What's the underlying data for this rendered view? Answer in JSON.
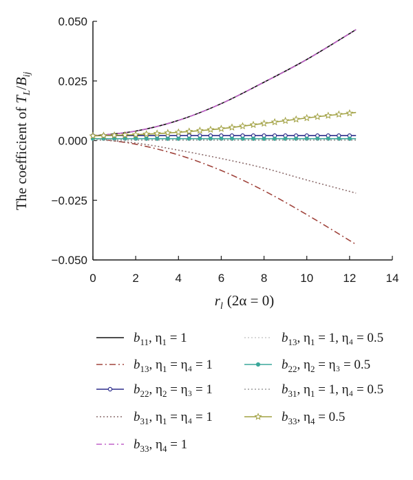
{
  "chart_data": {
    "type": "line",
    "title": "",
    "xlabel": {
      "main": "r",
      "sub": "l",
      "paren": "(2α = 0)"
    },
    "ylabel": {
      "pre": "The coefficient of ",
      "T": "T",
      "Tsub": "L",
      "slash": "/",
      "B": "B",
      "Bsub": "ij"
    },
    "xlim": [
      0,
      14
    ],
    "ylim": [
      -0.05,
      0.05
    ],
    "xticks": [
      0,
      2,
      4,
      6,
      8,
      10,
      12,
      14
    ],
    "xtick_labels": [
      "0",
      "2",
      "4",
      "6",
      "8",
      "10",
      "12",
      "14"
    ],
    "yticks": [
      0.05,
      0.025,
      0,
      -0.025,
      -0.05
    ],
    "ytick_labels": [
      "0.050",
      "0.025",
      "0.000",
      "−0.025",
      "−0.050"
    ],
    "grid": false,
    "legend_position": "bottom",
    "x": [
      0,
      2,
      4,
      6,
      8,
      10,
      12.3
    ],
    "series": [
      {
        "id": "b11_eta1_1",
        "label": {
          "var": "b",
          "sub": "11",
          "rest": ", η",
          "esub": "1",
          "tail": " = 1"
        },
        "color": "#111111",
        "dash": "",
        "marker": "none",
        "values": [
          0.002,
          0.004,
          0.0085,
          0.0155,
          0.0245,
          0.034,
          0.0465
        ]
      },
      {
        "id": "b13_eta1_eta4_1",
        "label": {
          "var": "b",
          "sub": "13",
          "rest": ", η",
          "esub": "1",
          "tail": " = η₄ = 1"
        },
        "color": "#a0443c",
        "dash": "9,4,2,4",
        "marker": "none",
        "values": [
          0.001,
          -0.0015,
          -0.006,
          -0.0125,
          -0.021,
          -0.031,
          -0.0435
        ]
      },
      {
        "id": "b22_eta2_eta3_1",
        "label": {
          "var": "b",
          "sub": "22",
          "rest": ", η",
          "esub": "2",
          "tail": " = η₃ = 1"
        },
        "color": "#2b2b8a",
        "dash": "",
        "marker": "circle",
        "values": [
          0.0021,
          0.0021,
          0.0021,
          0.0021,
          0.0021,
          0.0021,
          0.0021
        ]
      },
      {
        "id": "b31_eta1_eta4_1",
        "label": {
          "var": "b",
          "sub": "31",
          "rest": ", η",
          "esub": "1",
          "tail": " = η₄ = 1"
        },
        "color": "#8a6a6a",
        "dash": "2,3",
        "marker": "none",
        "values": [
          0.0005,
          -0.001,
          -0.004,
          -0.0075,
          -0.0115,
          -0.0165,
          -0.022
        ]
      },
      {
        "id": "b33_eta4_1",
        "label": {
          "var": "b",
          "sub": "33",
          "rest": ", η",
          "esub": "4",
          "tail": " = 1"
        },
        "color": "#c060c8",
        "dash": "8,4,2,4",
        "marker": "none",
        "values": [
          0.002,
          0.004,
          0.0085,
          0.0155,
          0.0245,
          0.034,
          0.0465
        ]
      },
      {
        "id": "b13_eta1_1_eta4_05",
        "label": {
          "var": "b",
          "sub": "13",
          "rest": ", η",
          "esub": "1",
          "tail": " = 1, η₄ = 0.5"
        },
        "color": "#c8c8c8",
        "dash": "2,3",
        "marker": "none",
        "values": [
          0.0004,
          0.0004,
          0.0004,
          0.0004,
          0.0004,
          0.0004,
          0.0004
        ]
      },
      {
        "id": "b22_eta2_eta3_05",
        "label": {
          "var": "b",
          "sub": "22",
          "rest": ", η",
          "esub": "2",
          "tail": " = η₃ = 0.5"
        },
        "color": "#3aa79a",
        "dash": "",
        "marker": "circle-filled",
        "values": [
          0.0008,
          0.0008,
          0.0008,
          0.0008,
          0.0008,
          0.0008,
          0.0008
        ]
      },
      {
        "id": "b31_eta1_1_eta4_05",
        "label": {
          "var": "b",
          "sub": "31",
          "rest": ", η",
          "esub": "1",
          "tail": " = 1, η₄ = 0.5"
        },
        "color": "#9a9a9a",
        "dash": "2,3",
        "marker": "none",
        "values": [
          0.0002,
          0.0002,
          0.0002,
          0.0002,
          0.0002,
          0.0002,
          0.0002
        ]
      },
      {
        "id": "b33_eta4_05",
        "label": {
          "var": "b",
          "sub": "33",
          "rest": ", η",
          "esub": "4",
          "tail": " = 0.5"
        },
        "color": "#a0a040",
        "dash": "",
        "marker": "star",
        "values": [
          0.002,
          0.0025,
          0.0035,
          0.005,
          0.0072,
          0.0095,
          0.0118
        ]
      }
    ]
  }
}
